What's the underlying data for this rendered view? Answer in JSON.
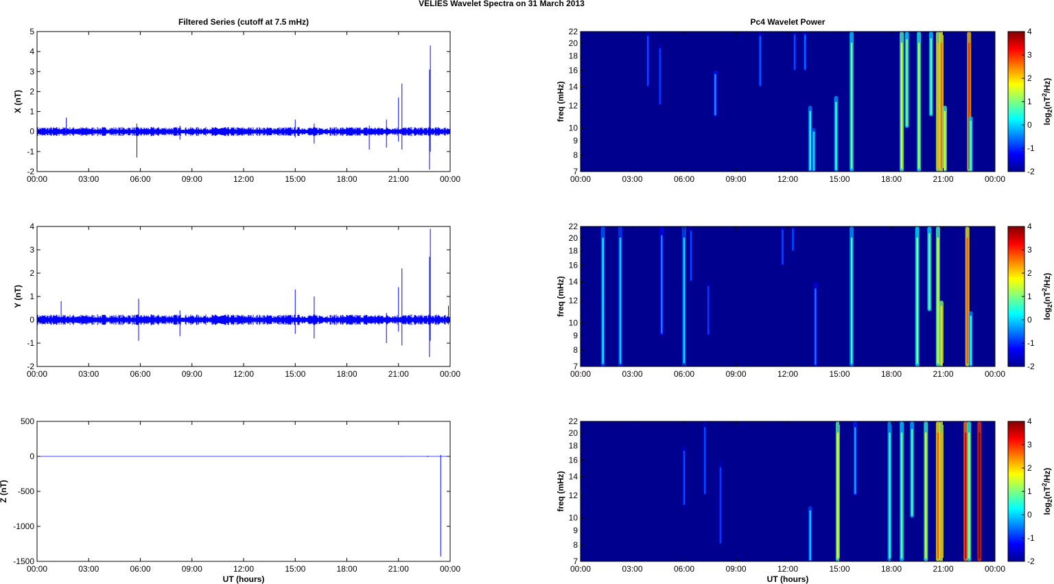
{
  "figure": {
    "title": "VELIES Wavelet Spectra on 31 March    2013",
    "left_column_title": "Filtered Series (cutoff at 7.5 mHz)",
    "right_column_title": "Pc4 Wavelet Power",
    "x_axis_label": "UT (hours)",
    "freq_axis_label": "freq (mHz)",
    "colorbar_label": "log2(nT2/Hz)"
  },
  "colors": {
    "trace": "#0000ff",
    "spectrogram_background": "#00008f",
    "jet_colormap": [
      "#00008f",
      "#0000ff",
      "#0080ff",
      "#00ffff",
      "#80ff80",
      "#ffff00",
      "#ff8000",
      "#ff0000",
      "#800000"
    ]
  },
  "chart_data": [
    {
      "type": "line",
      "panel": "x-series",
      "title": "Filtered Series (cutoff at 7.5 mHz)",
      "xlabel": "",
      "ylabel": "X (nT)",
      "xlim": [
        "00:00",
        "24:00"
      ],
      "ylim": [
        -2,
        5
      ],
      "xticks": [
        "00:00",
        "03:00",
        "06:00",
        "09:00",
        "12:00",
        "15:00",
        "18:00",
        "21:00",
        "00:00"
      ],
      "yticks": [
        -2,
        -1,
        0,
        1,
        2,
        3,
        4,
        5
      ],
      "baseline_noise_amplitude": 0.15,
      "spikes": [
        {
          "t": 1.7,
          "max": 0.7,
          "min": -0.2
        },
        {
          "t": 5.8,
          "max": 0.4,
          "min": -1.3
        },
        {
          "t": 8.3,
          "max": 0.3,
          "min": -0.4
        },
        {
          "t": 15.0,
          "max": 0.6,
          "min": -0.3
        },
        {
          "t": 16.1,
          "max": 0.4,
          "min": -0.6
        },
        {
          "t": 19.3,
          "max": 0.3,
          "min": -0.9
        },
        {
          "t": 20.3,
          "max": 0.6,
          "min": -0.8
        },
        {
          "t": 21.0,
          "max": 1.7,
          "min": -0.5
        },
        {
          "t": 21.2,
          "max": 2.4,
          "min": -0.9
        },
        {
          "t": 22.8,
          "max": 3.1,
          "min": -1.9
        },
        {
          "t": 22.85,
          "max": 4.3,
          "min": -1.0
        }
      ]
    },
    {
      "type": "line",
      "panel": "y-series",
      "title": "",
      "xlabel": "",
      "ylabel": "Y (nT)",
      "xlim": [
        "00:00",
        "24:00"
      ],
      "ylim": [
        -2,
        4
      ],
      "xticks": [
        "00:00",
        "03:00",
        "06:00",
        "09:00",
        "12:00",
        "15:00",
        "18:00",
        "21:00",
        "00:00"
      ],
      "yticks": [
        -2,
        -1,
        0,
        1,
        2,
        3,
        4
      ],
      "baseline_noise_amplitude": 0.15,
      "spikes": [
        {
          "t": 1.4,
          "max": 0.8,
          "min": -0.2
        },
        {
          "t": 5.9,
          "max": 0.9,
          "min": -0.9
        },
        {
          "t": 8.3,
          "max": 0.4,
          "min": -0.7
        },
        {
          "t": 15.0,
          "max": 1.3,
          "min": -0.6
        },
        {
          "t": 16.1,
          "max": 1.0,
          "min": -0.8
        },
        {
          "t": 20.3,
          "max": 0.3,
          "min": -1.0
        },
        {
          "t": 21.0,
          "max": 1.4,
          "min": -0.5
        },
        {
          "t": 21.2,
          "max": 2.2,
          "min": -1.1
        },
        {
          "t": 22.8,
          "max": 2.7,
          "min": -1.6
        },
        {
          "t": 22.85,
          "max": 3.9,
          "min": -0.9
        },
        {
          "t": 23.9,
          "max": 0.6,
          "min": -0.2
        }
      ]
    },
    {
      "type": "line",
      "panel": "z-series",
      "title": "",
      "xlabel": "UT (hours)",
      "ylabel": "Z (nT)",
      "xlim": [
        "00:00",
        "24:00"
      ],
      "ylim": [
        -1500,
        500
      ],
      "xticks": [
        "00:00",
        "03:00",
        "06:00",
        "09:00",
        "12:00",
        "15:00",
        "18:00",
        "21:00",
        "00:00"
      ],
      "yticks": [
        -1500,
        -1000,
        -500,
        0,
        500
      ],
      "baseline_noise_amplitude": 0,
      "spikes": [
        {
          "t": 21.2,
          "max": 5,
          "min": -5
        },
        {
          "t": 22.7,
          "max": 8,
          "min": -8
        },
        {
          "t": 23.45,
          "max": 20,
          "min": -1430
        }
      ]
    },
    {
      "type": "heatmap",
      "panel": "x-spectrum",
      "title": "Pc4 Wavelet Power",
      "xlabel": "",
      "ylabel": "freq (mHz)",
      "xlim": [
        "00:00",
        "24:00"
      ],
      "ylim": [
        7,
        22
      ],
      "yscale": "log",
      "xticks": [
        "00:00",
        "03:00",
        "06:00",
        "09:00",
        "12:00",
        "15:00",
        "18:00",
        "21:00",
        "00:00"
      ],
      "yticks": [
        7,
        8,
        9,
        10,
        12,
        14,
        16,
        18,
        20,
        22
      ],
      "colorbar": {
        "label": "log2(nT2/Hz)",
        "range": [
          -2,
          4
        ],
        "ticks": [
          -2,
          -1,
          0,
          1,
          2,
          3,
          4
        ]
      },
      "streaks": [
        {
          "t": 3.9,
          "f_top": 22,
          "f_bottom": 14,
          "power": -0.8
        },
        {
          "t": 4.6,
          "f_top": 20,
          "f_bottom": 12,
          "power": -0.9
        },
        {
          "t": 7.8,
          "f_top": 16,
          "f_bottom": 11,
          "power": -0.3
        },
        {
          "t": 10.4,
          "f_top": 22,
          "f_bottom": 14,
          "power": -0.7
        },
        {
          "t": 12.4,
          "f_top": 22,
          "f_bottom": 16,
          "power": -0.8
        },
        {
          "t": 13.0,
          "f_top": 22,
          "f_bottom": 16,
          "power": -0.6
        },
        {
          "t": 13.3,
          "f_top": 12,
          "f_bottom": 7,
          "power": 0.4
        },
        {
          "t": 13.5,
          "f_top": 10,
          "f_bottom": 7,
          "power": 0.1
        },
        {
          "t": 14.8,
          "f_top": 13,
          "f_bottom": 7,
          "power": 0.6
        },
        {
          "t": 15.7,
          "f_top": 22,
          "f_bottom": 7,
          "power": 0.9
        },
        {
          "t": 18.6,
          "f_top": 22,
          "f_bottom": 7,
          "power": 1.6
        },
        {
          "t": 18.9,
          "f_top": 22,
          "f_bottom": 10,
          "power": 1.0
        },
        {
          "t": 19.6,
          "f_top": 22,
          "f_bottom": 7,
          "power": 1.3
        },
        {
          "t": 20.3,
          "f_top": 22,
          "f_bottom": 11,
          "power": 0.9
        },
        {
          "t": 20.7,
          "f_top": 22,
          "f_bottom": 7,
          "power": 2.2
        },
        {
          "t": 20.9,
          "f_top": 22,
          "f_bottom": 7,
          "power": 2.6
        },
        {
          "t": 21.1,
          "f_top": 12,
          "f_bottom": 7,
          "power": 1.6
        },
        {
          "t": 22.5,
          "f_top": 22,
          "f_bottom": 7,
          "power": 3.0
        },
        {
          "t": 22.6,
          "f_top": 11,
          "f_bottom": 7,
          "power": 0.8
        }
      ]
    },
    {
      "type": "heatmap",
      "panel": "y-spectrum",
      "title": "",
      "xlabel": "",
      "ylabel": "freq (mHz)",
      "xlim": [
        "00:00",
        "24:00"
      ],
      "ylim": [
        7,
        22
      ],
      "yscale": "log",
      "xticks": [
        "00:00",
        "03:00",
        "06:00",
        "09:00",
        "12:00",
        "15:00",
        "18:00",
        "21:00",
        "00:00"
      ],
      "yticks": [
        7,
        8,
        9,
        10,
        12,
        14,
        16,
        18,
        20,
        22
      ],
      "colorbar": {
        "label": "log2(nT2/Hz)",
        "range": [
          -2,
          4
        ],
        "ticks": [
          -2,
          -1,
          0,
          1,
          2,
          3,
          4
        ]
      },
      "streaks": [
        {
          "t": 1.3,
          "f_top": 22,
          "f_bottom": 7,
          "power": 0.2
        },
        {
          "t": 2.3,
          "f_top": 22,
          "f_bottom": 7,
          "power": 0.0
        },
        {
          "t": 4.7,
          "f_top": 22,
          "f_bottom": 9,
          "power": -0.4
        },
        {
          "t": 6.0,
          "f_top": 22,
          "f_bottom": 7,
          "power": 0.1
        },
        {
          "t": 6.4,
          "f_top": 22,
          "f_bottom": 14,
          "power": -0.8
        },
        {
          "t": 7.4,
          "f_top": 14,
          "f_bottom": 9,
          "power": -0.9
        },
        {
          "t": 11.7,
          "f_top": 22,
          "f_bottom": 16,
          "power": -0.8
        },
        {
          "t": 12.3,
          "f_top": 22,
          "f_bottom": 18,
          "power": -0.8
        },
        {
          "t": 13.6,
          "f_top": 14,
          "f_bottom": 7,
          "power": -0.5
        },
        {
          "t": 15.7,
          "f_top": 22,
          "f_bottom": 7,
          "power": 0.6
        },
        {
          "t": 19.5,
          "f_top": 22,
          "f_bottom": 7,
          "power": 1.1
        },
        {
          "t": 20.2,
          "f_top": 22,
          "f_bottom": 11,
          "power": 1.0
        },
        {
          "t": 20.7,
          "f_top": 22,
          "f_bottom": 7,
          "power": 1.6
        },
        {
          "t": 20.9,
          "f_top": 12,
          "f_bottom": 7,
          "power": 2.0
        },
        {
          "t": 22.4,
          "f_top": 22,
          "f_bottom": 7,
          "power": 2.7
        },
        {
          "t": 22.6,
          "f_top": 11,
          "f_bottom": 7,
          "power": 0.5
        }
      ]
    },
    {
      "type": "heatmap",
      "panel": "z-spectrum",
      "title": "",
      "xlabel": "UT (hours)",
      "ylabel": "freq (mHz)",
      "xlim": [
        "00:00",
        "24:00"
      ],
      "ylim": [
        7,
        22
      ],
      "yscale": "log",
      "xticks": [
        "00:00",
        "03:00",
        "06:00",
        "09:00",
        "12:00",
        "15:00",
        "18:00",
        "21:00",
        "00:00"
      ],
      "yticks": [
        7,
        8,
        9,
        10,
        12,
        14,
        16,
        18,
        20,
        22
      ],
      "colorbar": {
        "label": "log2(nT2/Hz)",
        "range": [
          -2,
          4
        ],
        "ticks": [
          -2,
          -1,
          0,
          1,
          2,
          3,
          4
        ]
      },
      "streaks": [
        {
          "t": 6.0,
          "f_top": 18,
          "f_bottom": 11,
          "power": -0.8
        },
        {
          "t": 7.2,
          "f_top": 22,
          "f_bottom": 12,
          "power": -0.8
        },
        {
          "t": 8.1,
          "f_top": 16,
          "f_bottom": 8,
          "power": -0.9
        },
        {
          "t": 13.3,
          "f_top": 11,
          "f_bottom": 7,
          "power": 0.0
        },
        {
          "t": 14.9,
          "f_top": 22,
          "f_bottom": 7,
          "power": 1.7
        },
        {
          "t": 15.9,
          "f_top": 22,
          "f_bottom": 12,
          "power": -0.2
        },
        {
          "t": 17.9,
          "f_top": 22,
          "f_bottom": 7,
          "power": 0.6
        },
        {
          "t": 18.6,
          "f_top": 22,
          "f_bottom": 7,
          "power": 0.9
        },
        {
          "t": 19.2,
          "f_top": 22,
          "f_bottom": 10,
          "power": 0.7
        },
        {
          "t": 20.0,
          "f_top": 22,
          "f_bottom": 7,
          "power": 1.5
        },
        {
          "t": 20.7,
          "f_top": 22,
          "f_bottom": 7,
          "power": 2.7
        },
        {
          "t": 20.9,
          "f_top": 22,
          "f_bottom": 7,
          "power": 2.3
        },
        {
          "t": 22.3,
          "f_top": 22,
          "f_bottom": 7,
          "power": 3.4
        },
        {
          "t": 22.5,
          "f_top": 22,
          "f_bottom": 7,
          "power": 1.4
        },
        {
          "t": 23.1,
          "f_top": 22,
          "f_bottom": 7,
          "power": 3.9
        }
      ]
    }
  ]
}
